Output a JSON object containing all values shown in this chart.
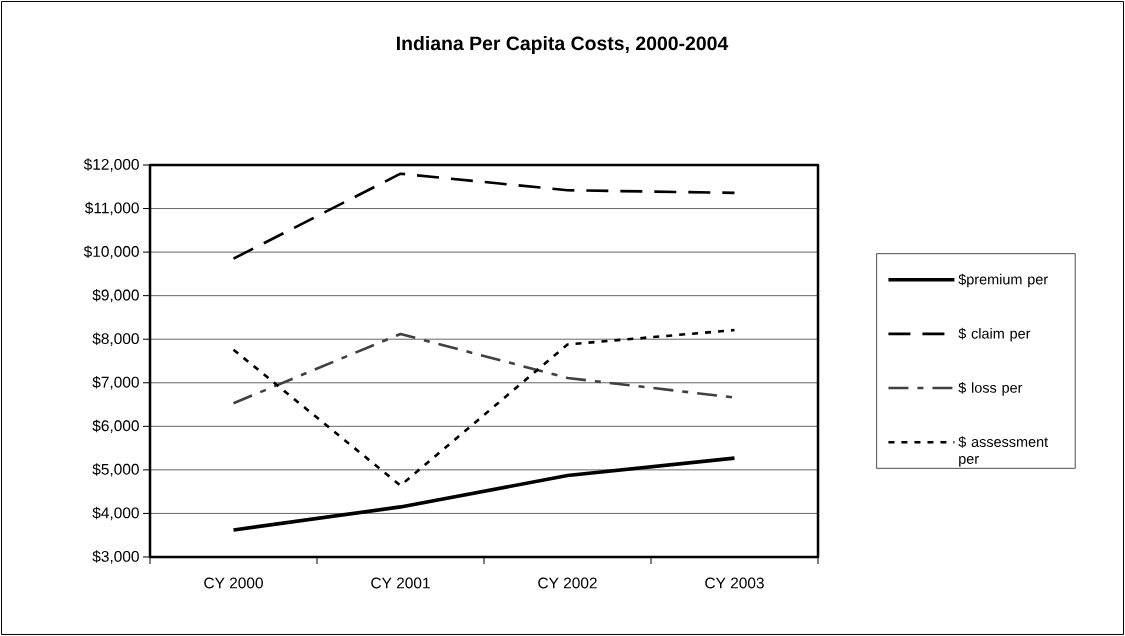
{
  "chart_data": {
    "type": "line",
    "title": "Indiana Per Capita Costs, 2000-2004",
    "categories": [
      "CY 2000",
      "CY 2001",
      "CY 2002",
      "CY 2003"
    ],
    "series": [
      {
        "name": "$premium per",
        "color": "#000000",
        "line_style": "solid",
        "values": [
          3620,
          4150,
          4870,
          5270
        ]
      },
      {
        "name": "$ claim per",
        "color": "#000000",
        "line_style": "dashed",
        "values": [
          9850,
          11800,
          11420,
          11360
        ]
      },
      {
        "name": "$ loss per",
        "color": "#404040",
        "line_style": "dashdot",
        "values": [
          6530,
          8120,
          7110,
          6660
        ]
      },
      {
        "name": "$ assessment per",
        "color": "#000000",
        "line_style": "dotted",
        "values": [
          7760,
          4640,
          7880,
          8210
        ]
      }
    ],
    "ylim": [
      3000,
      12000
    ],
    "yticks": [
      {
        "value": 3000,
        "label": "$3,000"
      },
      {
        "value": 4000,
        "label": "$4,000"
      },
      {
        "value": 5000,
        "label": "$5,000"
      },
      {
        "value": 6000,
        "label": "$6,000"
      },
      {
        "value": 7000,
        "label": "$7,000"
      },
      {
        "value": 8000,
        "label": "$8,000"
      },
      {
        "value": 9000,
        "label": "$9,000"
      },
      {
        "value": 10000,
        "label": "$10,000"
      },
      {
        "value": 11000,
        "label": "$11,000"
      },
      {
        "value": 12000,
        "label": "$12,000"
      }
    ],
    "grid": "y",
    "legend": "right"
  }
}
